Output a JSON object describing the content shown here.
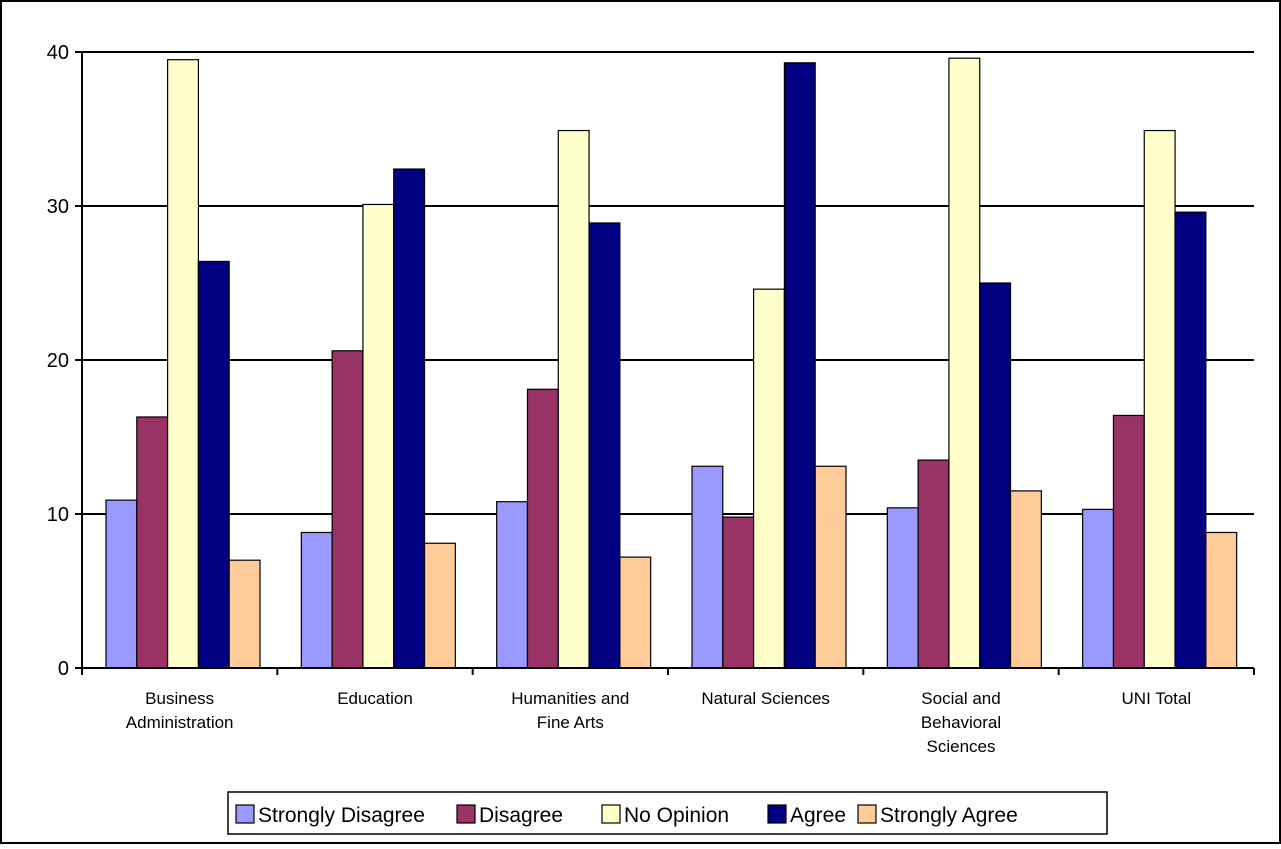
{
  "chart_data": {
    "type": "bar",
    "title": "",
    "xlabel": "",
    "ylabel": "",
    "ylim": [
      0,
      40
    ],
    "yticks": [
      0,
      10,
      20,
      30,
      40
    ],
    "grid": true,
    "legend_position": "bottom",
    "categories": [
      "Business Administration",
      "Education",
      "Humanities and Fine Arts",
      "Natural Sciences",
      "Social and Behavioral Sciences",
      "UNI Total"
    ],
    "category_lines": [
      [
        "Business",
        "Administration"
      ],
      [
        "Education"
      ],
      [
        "Humanities and",
        "Fine Arts"
      ],
      [
        "Natural Sciences"
      ],
      [
        "Social and",
        "Behavioral",
        "Sciences"
      ],
      [
        "UNI Total"
      ]
    ],
    "series": [
      {
        "name": "Strongly Disagree",
        "color": "#9999ff",
        "values": [
          10.9,
          8.8,
          10.8,
          13.1,
          10.4,
          10.3
        ]
      },
      {
        "name": "Disagree",
        "color": "#993366",
        "values": [
          16.3,
          20.6,
          18.1,
          9.8,
          13.5,
          16.4
        ]
      },
      {
        "name": "No Opinion",
        "color": "#ffffcc",
        "values": [
          39.5,
          30.1,
          34.9,
          24.6,
          39.6,
          34.9
        ]
      },
      {
        "name": "Agree",
        "color": "#000080",
        "values": [
          26.4,
          32.4,
          28.9,
          39.3,
          25.0,
          29.6
        ]
      },
      {
        "name": "Strongly Agree",
        "color": "#ffcc99",
        "values": [
          7.0,
          8.1,
          7.2,
          13.1,
          11.5,
          8.8
        ]
      }
    ]
  }
}
